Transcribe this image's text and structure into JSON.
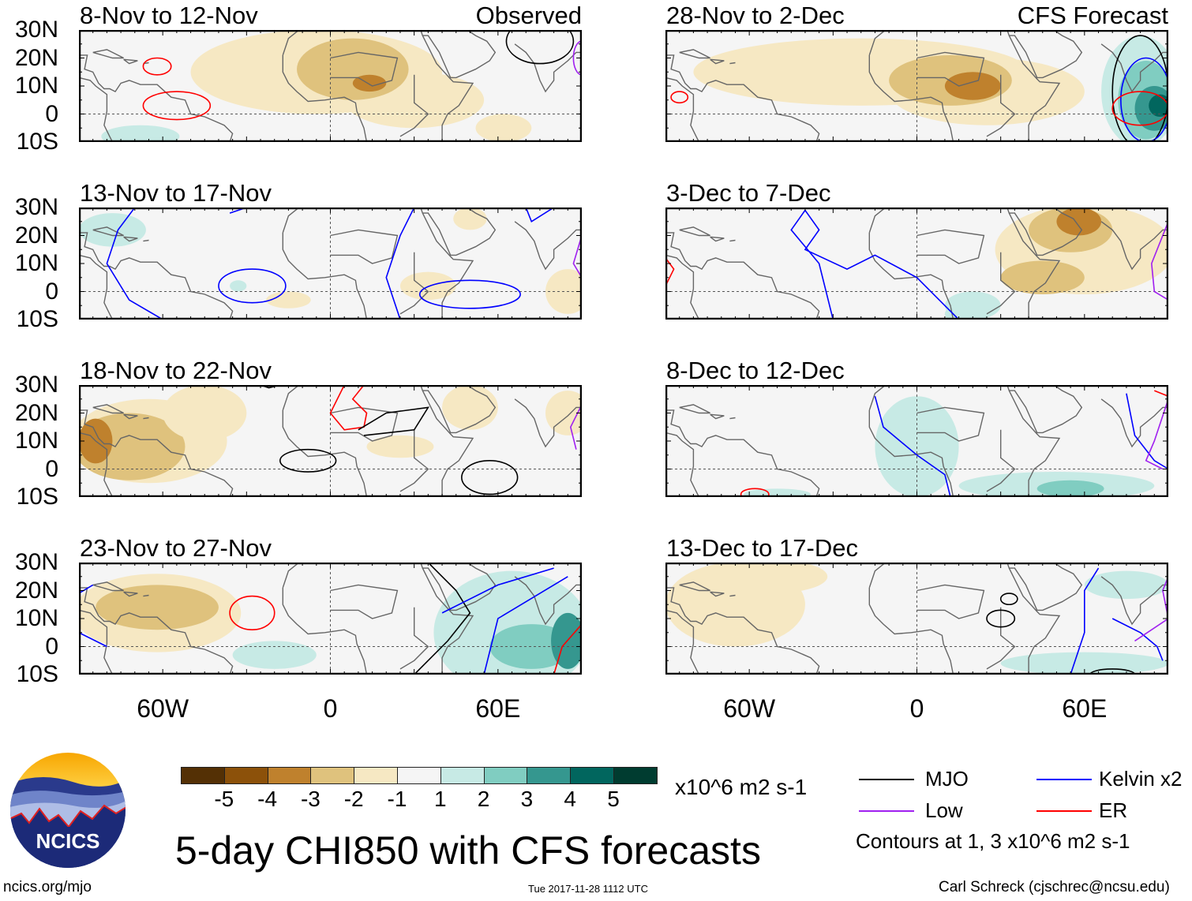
{
  "panels": [
    {
      "title": "8-Nov to 12-Nov",
      "tag": "Observed"
    },
    {
      "title": "28-Nov to 2-Dec",
      "tag": "CFS Forecast"
    },
    {
      "title": "13-Nov to 17-Nov",
      "tag": ""
    },
    {
      "title": "3-Dec to 7-Dec",
      "tag": ""
    },
    {
      "title": "18-Nov to 22-Nov",
      "tag": ""
    },
    {
      "title": "8-Dec to 12-Dec",
      "tag": ""
    },
    {
      "title": "23-Nov to 27-Nov",
      "tag": ""
    },
    {
      "title": "13-Dec to 17-Dec",
      "tag": ""
    }
  ],
  "lat_labels": [
    "30N",
    "20N",
    "10N",
    "0",
    "10S"
  ],
  "lon_labels": [
    "60W",
    "0",
    "60E"
  ],
  "colorbar": {
    "colors": [
      "#543005",
      "#8c510a",
      "#bf812d",
      "#dfc27d",
      "#f6e8c3",
      "#f5f5f5",
      "#c7eae5",
      "#80cdc1",
      "#35978f",
      "#01665e",
      "#003c30"
    ],
    "labels": [
      "-5",
      "-4",
      "-3",
      "-2",
      "-1",
      "1",
      "2",
      "3",
      "4",
      "5"
    ],
    "units": "x10^6 m2 s-1"
  },
  "legend": {
    "items": [
      {
        "label": "MJO",
        "color": "#000000"
      },
      {
        "label": "Kelvin x2",
        "color": "#0000ff"
      },
      {
        "label": "Low",
        "color": "#a020f0"
      },
      {
        "label": "ER",
        "color": "#ff0000"
      }
    ],
    "note": "Contours at 1, 3 x10^6 m2 s-1"
  },
  "title": "5-day CHI850 with CFS forecasts",
  "logo_text": "NCICS",
  "footer": {
    "url": "ncics.org/mjo",
    "timestamp": "Tue 2017-11-28 1112 UTC",
    "credit": "Carl Schreck (cjschrec@ncsu.edu)"
  }
}
